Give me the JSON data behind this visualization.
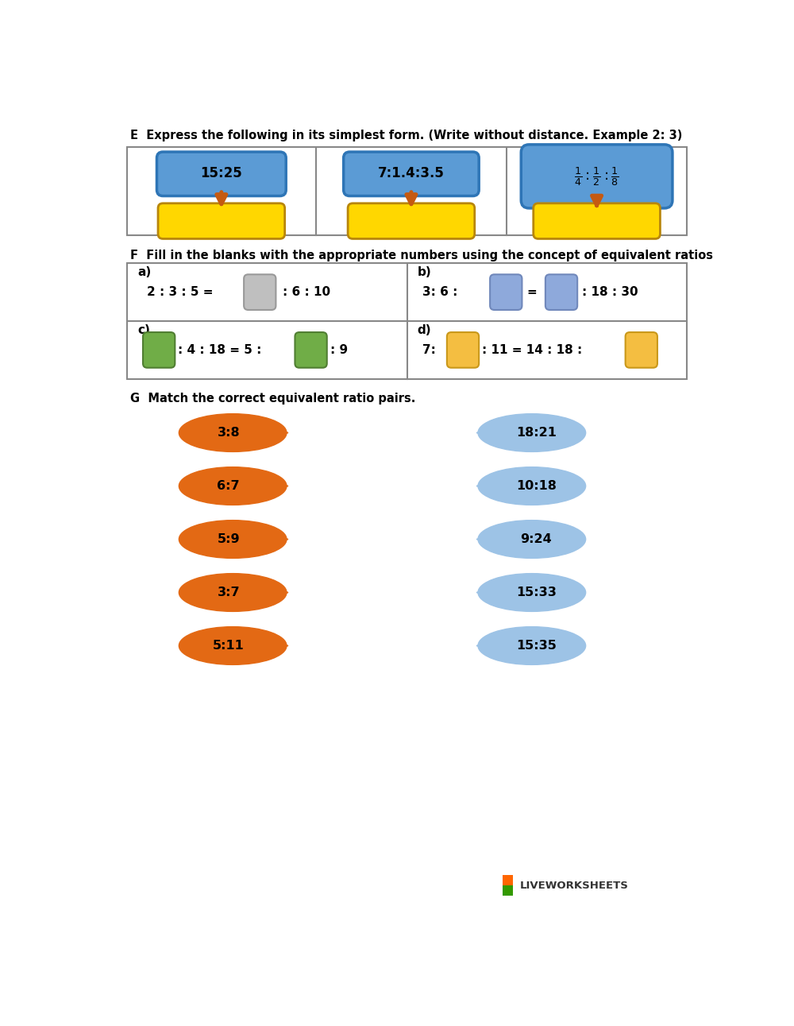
{
  "bg_color": "#ffffff",
  "section_e_title": "E  Express the following in its simplest form. (Write without distance. Example 2: 3)",
  "section_f_title": "F  Fill in the blanks with the appropriate numbers using the concept of equivalent ratios",
  "section_g_title": "G  Match the correct equivalent ratio pairs.",
  "blue_box_color": "#5B9BD5",
  "blue_box_edge": "#2E75B6",
  "yellow_box_color": "#FFD700",
  "yellow_box_edge": "#B8860B",
  "arrow_color": "#C55A11",
  "gray_box_color": "#BFBFBF",
  "gray_box_edge": "#999999",
  "purple_box_color": "#8EA9DB",
  "purple_box_edge": "#7088BB",
  "green_box_color": "#70AD47",
  "green_box_edge": "#507E32",
  "orange_shape_color": "#E36914",
  "blue_shape_color": "#9DC3E6",
  "left_labels": [
    "3:8",
    "6:7",
    "5:9",
    "3:7",
    "5:11"
  ],
  "right_labels": [
    "18:21",
    "10:18",
    "9:24",
    "15:33",
    "15:35"
  ],
  "liveworksheets_orange": "#FF6600",
  "liveworksheets_green": "#339900",
  "text_color": "#000000"
}
